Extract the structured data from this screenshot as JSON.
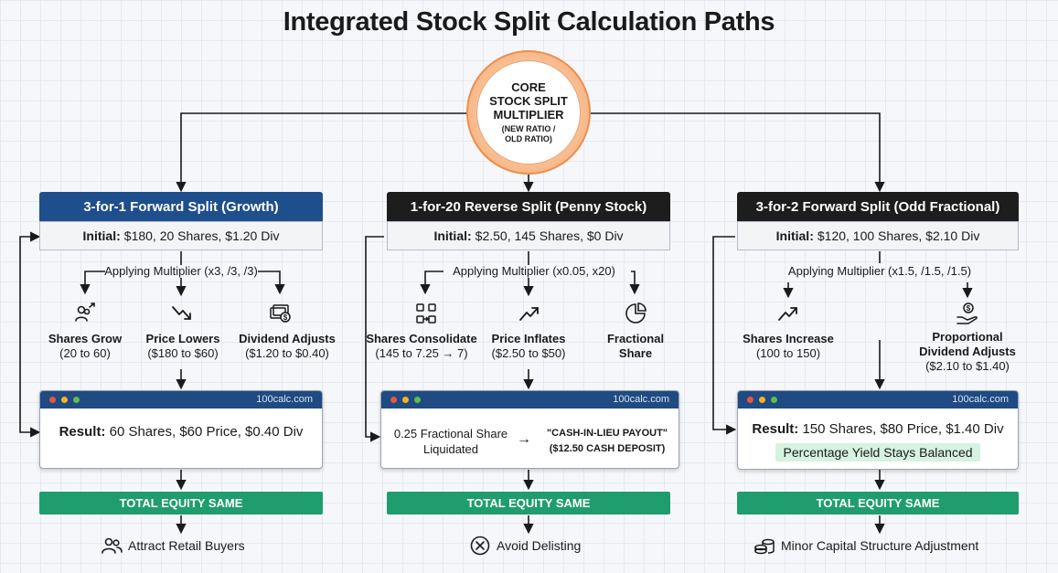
{
  "title": "Integrated Stock Split Calculation Paths",
  "core": {
    "line1": "CORE",
    "line2": "STOCK SPLIT",
    "line3": "MULTIPLIER",
    "sub1": "(NEW RATIO /",
    "sub2": "OLD RATIO)"
  },
  "columns": [
    {
      "header": "3-for-1 Forward Split (Growth)",
      "initial_label": "Initial:",
      "initial_value": "$180, 20 Shares, $1.20 Div",
      "multiplier": "Applying Multiplier (x3, /3, /3)",
      "steps": [
        {
          "icon": "users-up-icon",
          "title": "Shares Grow",
          "detail": "(20 to 60)"
        },
        {
          "icon": "trend-down-icon",
          "title": "Price Lowers",
          "detail": "($180 to $60)"
        },
        {
          "icon": "cash-icon",
          "title": "Dividend Adjusts",
          "detail": "($1.20 to $0.40)"
        }
      ],
      "url": "100calc.com",
      "result_label": "Result:",
      "result_value": "60 Shares, $60 Price, $0.40 Div",
      "equity": "TOTAL EQUITY SAME",
      "outcome_icon": "users-icon",
      "outcome": "Attract Retail Buyers"
    },
    {
      "header": "1-for-20 Reverse Split (Penny Stock)",
      "initial_label": "Initial:",
      "initial_value": "$2.50, 145 Shares, $0 Div",
      "multiplier": "Applying Multiplier (x0.05, x20)",
      "steps": [
        {
          "icon": "consolidate-icon",
          "title": "Shares Consolidate",
          "detail": "(145 to 7.25 → 7)"
        },
        {
          "icon": "trend-up-icon",
          "title": "Price Inflates",
          "detail": "($2.50 to $50)"
        },
        {
          "icon": "pie-chart-icon",
          "title": "Fractional",
          "detail": "Share"
        }
      ],
      "url": "100calc.com",
      "result_left_1": "0.25 Fractional Share",
      "result_left_2": "Liquidated",
      "result_arrow": "→",
      "result_right_1": "\"CASH-IN-LIEU PAYOUT\"",
      "result_right_2": "($12.50 CASH DEPOSIT)",
      "equity": "TOTAL EQUITY SAME",
      "outcome_icon": "x-circle-icon",
      "outcome": "Avoid Delisting"
    },
    {
      "header": "3-for-2 Forward Split (Odd Fractional)",
      "initial_label": "Initial:",
      "initial_value": "$120, 100 Shares, $2.10 Div",
      "multiplier": "Applying Multiplier (x1.5, /1.5, /1.5)",
      "steps": [
        {
          "icon": "trend-up-icon",
          "title": "Shares Increase",
          "detail": "(100 to 150)"
        },
        {
          "icon": "hand-coin-icon",
          "title": "Proportional",
          "title2": "Dividend Adjusts",
          "detail": "($2.10 to $1.40)"
        }
      ],
      "url": "100calc.com",
      "result_label": "Result:",
      "result_value": "150 Shares, $80 Price, $1.40 Div",
      "yield_note": "Percentage Yield Stays Balanced",
      "equity": "TOTAL EQUITY SAME",
      "outcome_icon": "coins-icon",
      "outcome": "Minor Capital Structure Adjustment"
    }
  ],
  "colors": {
    "blue_header": "#1f4e8c",
    "black_header": "#1d1d1d",
    "equity_green": "#1f9d6e",
    "core_orange": "#ec8f4f"
  }
}
